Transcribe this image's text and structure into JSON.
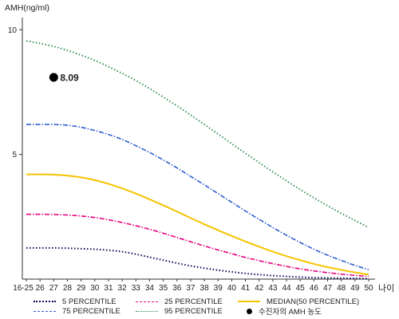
{
  "chart_data": {
    "type": "line",
    "ylabel": "AMH(ng/ml)",
    "xlabel": "나이",
    "x": [
      "16-25",
      "26",
      "27",
      "28",
      "29",
      "30",
      "31",
      "32",
      "33",
      "34",
      "35",
      "36",
      "37",
      "38",
      "39",
      "40",
      "41",
      "42",
      "43",
      "44",
      "45",
      "46",
      "47",
      "48",
      "49",
      "50"
    ],
    "yticks": [
      5,
      10
    ],
    "ylim": [
      0,
      11
    ],
    "grid": false,
    "series": [
      {
        "name": "5 PERCENTILE",
        "color": "#0a0a5a",
        "dash": "1.5,2.5",
        "width": 2,
        "values": [
          1.25,
          1.25,
          1.25,
          1.24,
          1.22,
          1.2,
          1.16,
          1.1,
          1.0,
          0.88,
          0.76,
          0.64,
          0.53,
          0.44,
          0.36,
          0.29,
          0.23,
          0.18,
          0.14,
          0.11,
          0.08,
          0.06,
          0.05,
          0.04,
          0.03,
          0.02
        ]
      },
      {
        "name": "25 PERCENTILE",
        "color": "#e6007e",
        "dash": "6,2,1.5,2",
        "width": 1.6,
        "values": [
          2.6,
          2.6,
          2.59,
          2.57,
          2.53,
          2.47,
          2.38,
          2.27,
          2.14,
          2.0,
          1.84,
          1.67,
          1.5,
          1.33,
          1.17,
          1.02,
          0.87,
          0.74,
          0.62,
          0.51,
          0.41,
          0.33,
          0.26,
          0.2,
          0.15,
          0.11
        ]
      },
      {
        "name": "MEDIAN(50 PERCENTILE)",
        "color": "#f5c400",
        "dash": "",
        "width": 2,
        "values": [
          4.2,
          4.2,
          4.19,
          4.15,
          4.08,
          3.97,
          3.82,
          3.64,
          3.43,
          3.2,
          2.96,
          2.71,
          2.45,
          2.2,
          1.96,
          1.73,
          1.51,
          1.3,
          1.1,
          0.92,
          0.76,
          0.61,
          0.48,
          0.37,
          0.27,
          0.18
        ]
      },
      {
        "name": "75 PERCENTILE",
        "color": "#2e5fd0",
        "dash": "6,2,1.5,2",
        "width": 1.6,
        "values": [
          6.2,
          6.2,
          6.2,
          6.17,
          6.09,
          5.96,
          5.8,
          5.6,
          5.35,
          5.08,
          4.78,
          4.46,
          4.12,
          3.78,
          3.43,
          3.08,
          2.73,
          2.4,
          2.07,
          1.76,
          1.47,
          1.2,
          0.96,
          0.75,
          0.55,
          0.38
        ]
      },
      {
        "name": "95 PERCENTILE",
        "color": "#2a8a4a",
        "dash": "1.5,2.5",
        "width": 1.8,
        "values": [
          9.55,
          9.45,
          9.33,
          9.17,
          8.98,
          8.77,
          8.52,
          8.25,
          7.96,
          7.64,
          7.3,
          6.95,
          6.58,
          6.2,
          5.82,
          5.43,
          5.05,
          4.67,
          4.3,
          3.94,
          3.59,
          3.26,
          2.94,
          2.64,
          2.35,
          2.07
        ]
      }
    ],
    "annotation": {
      "label": "수진자의 AMH 농도",
      "x": "27",
      "y": 8.09,
      "text": "8.09"
    },
    "legend_position": "bottom"
  }
}
